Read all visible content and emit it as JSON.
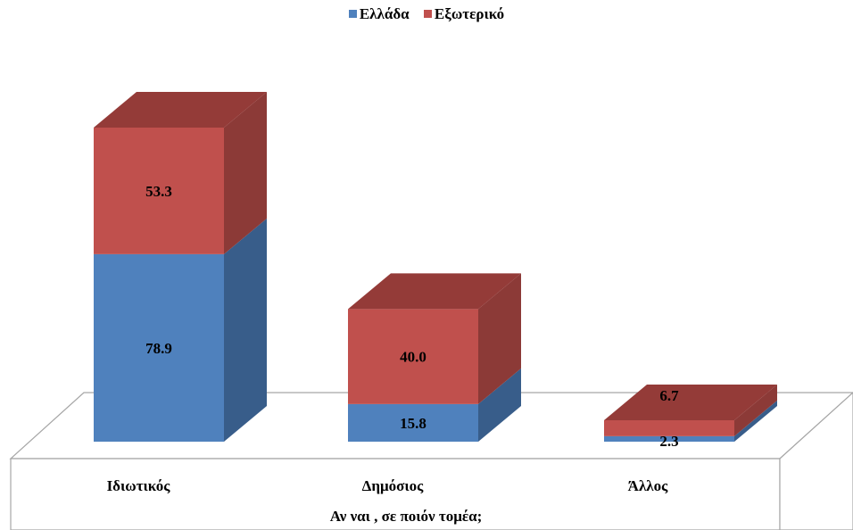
{
  "chart_data": {
    "type": "bar",
    "stacked": true,
    "style": "3d",
    "categories": [
      "Ιδιωτικός",
      "Δημόσιος",
      "Άλλος"
    ],
    "series": [
      {
        "name": "Ελλάδα",
        "values": [
          78.9,
          15.8,
          2.3
        ],
        "color": "#4f81bd",
        "side_color": "#385d8a"
      },
      {
        "name": "Εξωτερικό",
        "values": [
          53.3,
          40.0,
          6.7
        ],
        "color": "#c0504d",
        "side_color": "#8c3a37"
      }
    ],
    "data_labels": [
      [
        "78.9",
        "15.8",
        "2.3"
      ],
      [
        "53.3",
        "40.0",
        "6.7"
      ]
    ],
    "xlabel": "Αν ναι , σε ποιόν τομέα;",
    "legend_position": "top",
    "grid": false
  }
}
